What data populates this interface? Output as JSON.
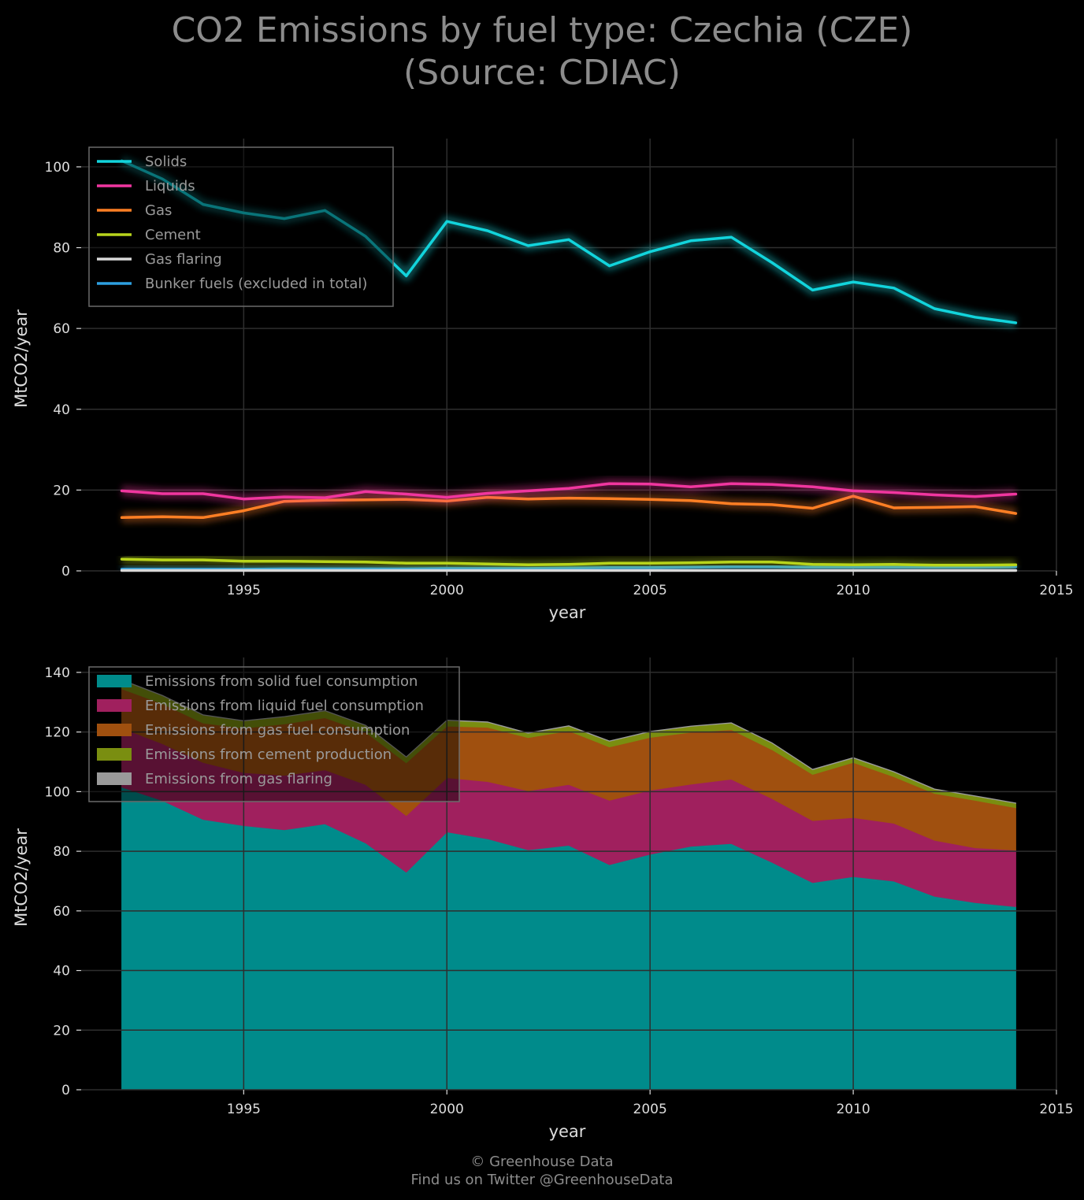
{
  "title": {
    "line1": "CO2 Emissions by fuel type: Czechia (CZE)",
    "line2": "(Source: CDIAC)"
  },
  "footer": {
    "line1": "© Greenhouse Data",
    "line2": "Find us on Twitter @GreenhouseData"
  },
  "chart_data": [
    {
      "type": "line",
      "xlabel": "year",
      "ylabel": "MtCO2/year",
      "xlim": [
        1991,
        2015
      ],
      "ylim": [
        0,
        107
      ],
      "xticks": [
        1995,
        2000,
        2005,
        2010,
        2015
      ],
      "yticks": [
        0,
        20,
        40,
        60,
        80,
        100
      ],
      "grid": true,
      "legend_position": "top-left",
      "x": [
        1992,
        1993,
        1994,
        1995,
        1996,
        1997,
        1998,
        1999,
        2000,
        2001,
        2002,
        2003,
        2004,
        2005,
        2006,
        2007,
        2008,
        2009,
        2010,
        2011,
        2012,
        2013,
        2014
      ],
      "series": [
        {
          "name": "Solids",
          "color": "#12d4dc",
          "values": [
            101.5,
            97.0,
            90.7,
            88.6,
            87.2,
            89.2,
            82.8,
            73.0,
            86.5,
            84.2,
            80.5,
            82.0,
            75.5,
            79.0,
            81.7,
            82.6,
            76.3,
            69.5,
            71.5,
            70.0,
            64.9,
            62.8,
            61.4
          ]
        },
        {
          "name": "Liquids",
          "color": "#f0369f",
          "values": [
            19.8,
            19.1,
            19.1,
            17.8,
            18.3,
            18.1,
            19.6,
            19.0,
            18.2,
            19.2,
            19.8,
            20.4,
            21.6,
            21.5,
            20.8,
            21.6,
            21.4,
            20.8,
            19.8,
            19.4,
            18.8,
            18.4,
            19.0
          ]
        },
        {
          "name": "Gas",
          "color": "#ff7f24",
          "values": [
            13.2,
            13.4,
            13.2,
            14.9,
            17.2,
            17.5,
            17.6,
            17.7,
            17.3,
            18.2,
            17.8,
            18.0,
            17.9,
            17.7,
            17.4,
            16.6,
            16.4,
            15.5,
            18.5,
            15.6,
            15.7,
            15.9,
            14.2
          ]
        },
        {
          "name": "Cement",
          "color": "#b8d41c",
          "values": [
            2.9,
            2.7,
            2.7,
            2.4,
            2.4,
            2.3,
            2.2,
            1.9,
            1.9,
            1.7,
            1.5,
            1.6,
            1.9,
            1.9,
            2.0,
            2.2,
            2.2,
            1.6,
            1.5,
            1.6,
            1.4,
            1.4,
            1.5
          ]
        },
        {
          "name": "Gas flaring",
          "color": "#d8d8d8",
          "values": [
            0.1,
            0.1,
            0.1,
            0.1,
            0.1,
            0.1,
            0.1,
            0.1,
            0.1,
            0.1,
            0.1,
            0.1,
            0.1,
            0.1,
            0.1,
            0.1,
            0.1,
            0.1,
            0.1,
            0.1,
            0.1,
            0.1,
            0.1
          ]
        },
        {
          "name": "Bunker fuels (excluded in total)",
          "color": "#2d9fe0",
          "values": [
            0.4,
            0.4,
            0.4,
            0.4,
            0.5,
            0.5,
            0.5,
            0.5,
            0.6,
            0.6,
            0.6,
            0.7,
            0.8,
            0.8,
            0.9,
            1.0,
            1.0,
            0.9,
            0.9,
            0.9,
            0.9,
            0.9,
            1.0
          ]
        }
      ]
    },
    {
      "type": "area",
      "stacked": true,
      "xlabel": "year",
      "ylabel": "MtCO2/year",
      "xlim": [
        1991,
        2015
      ],
      "ylim": [
        0,
        145
      ],
      "xticks": [
        1995,
        2000,
        2005,
        2010,
        2015
      ],
      "yticks": [
        0,
        20,
        40,
        60,
        80,
        100,
        120,
        140
      ],
      "grid": true,
      "legend_position": "top-left",
      "x": [
        1992,
        1993,
        1994,
        1995,
        1996,
        1997,
        1998,
        1999,
        2000,
        2001,
        2002,
        2003,
        2004,
        2005,
        2006,
        2007,
        2008,
        2009,
        2010,
        2011,
        2012,
        2013,
        2014
      ],
      "series": [
        {
          "name": "Emissions from solid fuel consumption",
          "color": "#008b8b",
          "values": [
            101.5,
            97.0,
            90.7,
            88.6,
            87.2,
            89.2,
            82.8,
            73.0,
            86.5,
            84.2,
            80.5,
            82.0,
            75.5,
            79.0,
            81.7,
            82.6,
            76.3,
            69.5,
            71.5,
            70.0,
            64.9,
            62.8,
            61.4
          ]
        },
        {
          "name": "Emissions from liquid fuel consumption",
          "color": "#a0205e",
          "values": [
            19.8,
            19.1,
            19.1,
            17.8,
            18.3,
            18.1,
            19.6,
            19.0,
            18.2,
            19.2,
            19.8,
            20.4,
            21.6,
            21.5,
            20.8,
            21.6,
            21.4,
            20.8,
            19.8,
            19.4,
            18.8,
            18.4,
            19.0
          ]
        },
        {
          "name": "Emissions from gas fuel consumption",
          "color": "#a0500f",
          "values": [
            13.2,
            13.4,
            13.2,
            14.9,
            17.2,
            17.5,
            17.6,
            17.7,
            17.3,
            18.2,
            17.8,
            18.0,
            17.9,
            17.7,
            17.4,
            16.6,
            16.4,
            15.5,
            18.5,
            15.6,
            15.7,
            15.9,
            14.2
          ]
        },
        {
          "name": "Emissions from cement production",
          "color": "#7a8e10",
          "values": [
            2.9,
            2.7,
            2.7,
            2.4,
            2.4,
            2.3,
            2.2,
            1.9,
            1.9,
            1.7,
            1.5,
            1.6,
            1.9,
            1.9,
            2.0,
            2.2,
            2.2,
            1.6,
            1.5,
            1.6,
            1.4,
            1.4,
            1.5
          ]
        },
        {
          "name": "Emissions from gas flaring",
          "color": "#9a9a9a",
          "values": [
            0.1,
            0.1,
            0.1,
            0.1,
            0.1,
            0.1,
            0.1,
            0.1,
            0.1,
            0.1,
            0.1,
            0.1,
            0.1,
            0.1,
            0.1,
            0.1,
            0.1,
            0.1,
            0.1,
            0.1,
            0.1,
            0.1,
            0.1
          ]
        }
      ]
    }
  ]
}
